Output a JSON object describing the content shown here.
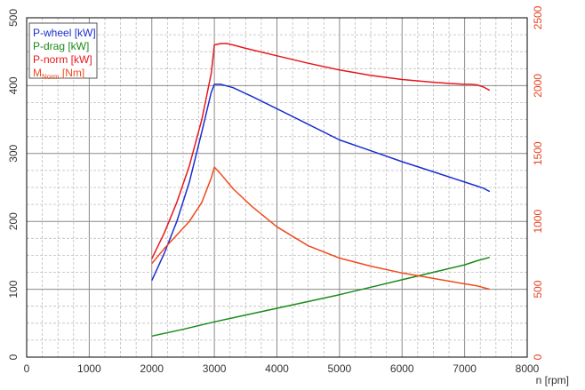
{
  "chart_data": {
    "type": "line",
    "xlabel": "n [rpm]",
    "xlim": [
      0,
      8000
    ],
    "x_ticks": [
      "0",
      "1000",
      "2000",
      "3000",
      "4000",
      "5000",
      "6000",
      "7000",
      "8000"
    ],
    "ylim_left": [
      0,
      500
    ],
    "y_left_ticks": [
      "0",
      "100",
      "200",
      "300",
      "400",
      "500"
    ],
    "ylim_right": [
      0,
      2500
    ],
    "y_right_ticks": [
      "0",
      "500",
      "1000",
      "1500",
      "2000",
      "2500"
    ],
    "grid": true,
    "legend_position": "top-left",
    "series": [
      {
        "name": "P-wheel [kW]",
        "axis": "left",
        "color": "#1a2fd0",
        "x": [
          2000,
          2200,
          2400,
          2600,
          2800,
          2950,
          3000,
          3100,
          3300,
          3600,
          4000,
          4500,
          5000,
          5500,
          6000,
          6500,
          7000,
          7200,
          7300,
          7400
        ],
        "y": [
          113,
          153,
          200,
          258,
          332,
          390,
          402,
          402,
          397,
          384,
          366,
          343,
          320,
          304,
          288,
          273,
          258,
          252,
          249,
          244
        ]
      },
      {
        "name": "P-drag [kW]",
        "axis": "left",
        "color": "#1a8a1a",
        "x": [
          2000,
          2500,
          3000,
          3500,
          4000,
          4500,
          5000,
          5500,
          6000,
          6500,
          7000,
          7200,
          7400
        ],
        "y": [
          31,
          41,
          52,
          62,
          72,
          82,
          92,
          103,
          114,
          125,
          136,
          142,
          147
        ]
      },
      {
        "name": "P-norm [kW]",
        "axis": "left",
        "color": "#e8181c",
        "x": [
          2000,
          2200,
          2400,
          2600,
          2800,
          2950,
          3000,
          3100,
          3200,
          3300,
          3500,
          4000,
          4500,
          5000,
          5500,
          6000,
          6500,
          6800,
          7000,
          7100,
          7200,
          7300,
          7400
        ],
        "y": [
          145,
          183,
          228,
          282,
          350,
          418,
          460,
          462,
          462,
          460,
          455,
          444,
          433,
          423,
          415,
          409,
          405,
          403,
          402,
          402,
          401,
          398,
          393
        ]
      },
      {
        "name": "M_Norm [Nm]",
        "axis": "right",
        "color": "#f04a1e",
        "x": [
          2000,
          2200,
          2400,
          2600,
          2800,
          2950,
          3000,
          3100,
          3300,
          3600,
          4000,
          4500,
          5000,
          5500,
          6000,
          6500,
          7000,
          7200,
          7400
        ],
        "y": [
          690,
          800,
          900,
          1000,
          1140,
          1320,
          1400,
          1350,
          1240,
          1110,
          960,
          820,
          730,
          670,
          620,
          580,
          540,
          525,
          500
        ]
      }
    ]
  },
  "legend": [
    {
      "label": "P-wheel [kW]",
      "color": "#1a2fd0"
    },
    {
      "label": "P-drag [kW]",
      "color": "#1a8a1a"
    },
    {
      "label": "P-norm [kW]",
      "color": "#e8181c"
    },
    {
      "label_main": "M",
      "label_sub": "Norm",
      "label_rest": " [Nm]",
      "color": "#f04a1e"
    }
  ]
}
